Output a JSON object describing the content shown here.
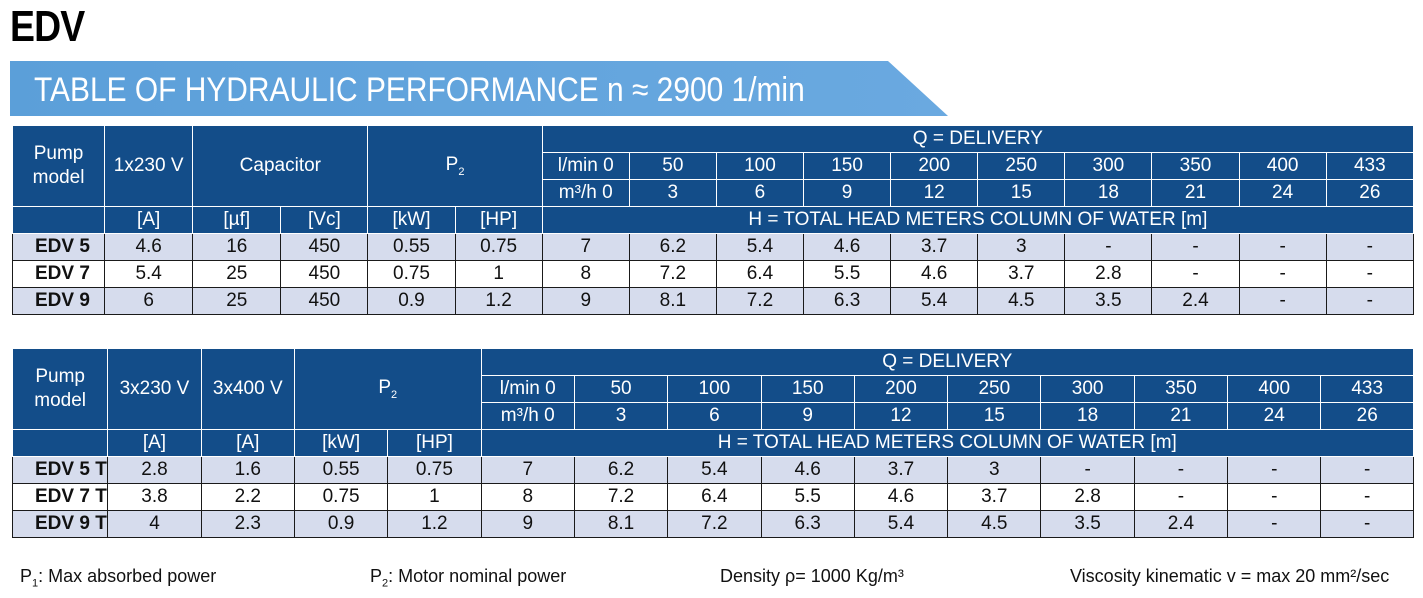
{
  "title": "EDV",
  "banner": "TABLE OF HYDRAULIC PERFORMANCE n ≈ 2900 1/min",
  "table1": {
    "pump_model": "Pump model",
    "volt": "1x230 V",
    "capacitor": "Capacitor",
    "p2": "P",
    "p2_sub": "2",
    "delivery": "Q = DELIVERY",
    "lmin": "l/min 0",
    "m3h": "m³/h 0",
    "flows_l": [
      "50",
      "100",
      "150",
      "200",
      "250",
      "300",
      "350",
      "400",
      "433"
    ],
    "flows_m": [
      "3",
      "6",
      "9",
      "12",
      "15",
      "18",
      "21",
      "24",
      "26"
    ],
    "units": [
      "[A]",
      "[µf]",
      "[Vc]",
      "[kW]",
      "[HP]"
    ],
    "head": "H = TOTAL HEAD METERS COLUMN OF WATER [m]",
    "rows": [
      {
        "model": "EDV 5",
        "a": "4.6",
        "uf": "16",
        "vc": "450",
        "kw": "0.55",
        "hp": "0.75",
        "h": [
          "7",
          "6.2",
          "5.4",
          "4.6",
          "3.7",
          "3",
          "-",
          "-",
          "-",
          "-"
        ]
      },
      {
        "model": "EDV 7",
        "a": "5.4",
        "uf": "25",
        "vc": "450",
        "kw": "0.75",
        "hp": "1",
        "h": [
          "8",
          "7.2",
          "6.4",
          "5.5",
          "4.6",
          "3.7",
          "2.8",
          "-",
          "-",
          "-"
        ]
      },
      {
        "model": "EDV 9",
        "a": "6",
        "uf": "25",
        "vc": "450",
        "kw": "0.9",
        "hp": "1.2",
        "h": [
          "9",
          "8.1",
          "7.2",
          "6.3",
          "5.4",
          "4.5",
          "3.5",
          "2.4",
          "-",
          "-"
        ]
      }
    ]
  },
  "table2": {
    "pump_model": "Pump model",
    "volt1": "3x230 V",
    "volt2": "3x400 V",
    "p2": "P",
    "p2_sub": "2",
    "delivery": "Q = DELIVERY",
    "lmin": "l/min 0",
    "m3h": "m³/h 0",
    "flows_l": [
      "50",
      "100",
      "150",
      "200",
      "250",
      "300",
      "350",
      "400",
      "433"
    ],
    "flows_m": [
      "3",
      "6",
      "9",
      "12",
      "15",
      "18",
      "21",
      "24",
      "26"
    ],
    "units": [
      "[A]",
      "[A]",
      "[kW]",
      "[HP]"
    ],
    "head": "H = TOTAL HEAD METERS COLUMN OF WATER [m]",
    "rows": [
      {
        "model": "EDV 5 T",
        "a1": "2.8",
        "a2": "1.6",
        "kw": "0.55",
        "hp": "0.75",
        "h": [
          "7",
          "6.2",
          "5.4",
          "4.6",
          "3.7",
          "3",
          "-",
          "-",
          "-",
          "-"
        ]
      },
      {
        "model": "EDV 7 T",
        "a1": "3.8",
        "a2": "2.2",
        "kw": "0.75",
        "hp": "1",
        "h": [
          "8",
          "7.2",
          "6.4",
          "5.5",
          "4.6",
          "3.7",
          "2.8",
          "-",
          "-",
          "-"
        ]
      },
      {
        "model": "EDV 9 T",
        "a1": "4",
        "a2": "2.3",
        "kw": "0.9",
        "hp": "1.2",
        "h": [
          "9",
          "8.1",
          "7.2",
          "6.3",
          "5.4",
          "4.5",
          "3.5",
          "2.4",
          "-",
          "-"
        ]
      }
    ]
  },
  "footer": {
    "p1_label": "P",
    "p1_sub": "1",
    "p1_text": ": Max absorbed power",
    "p2_label": "P",
    "p2_sub": "2",
    "p2_text": ": Motor nominal power",
    "density": "Density ρ= 1000 Kg/m³",
    "viscosity": "Viscosity kinematic v = max 20 mm²/sec"
  },
  "colors": {
    "header_bg": "#134d89",
    "banner_bg": "#6aa9e0",
    "row_alt": "#d6dced"
  }
}
